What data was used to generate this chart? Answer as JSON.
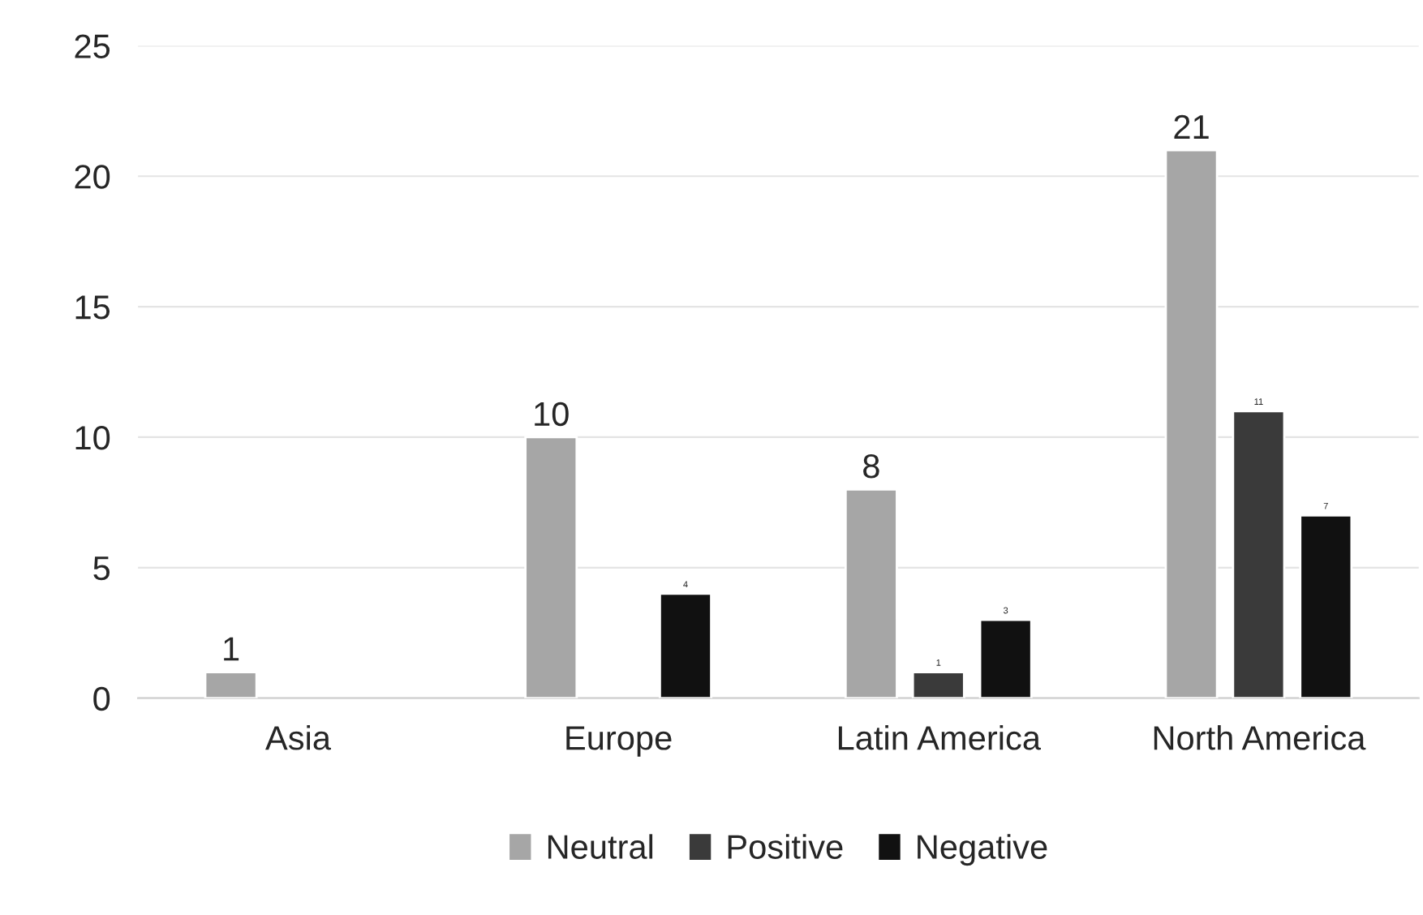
{
  "chart_data": {
    "type": "bar",
    "categories": [
      "Asia",
      "Europe",
      "Latin America",
      "North America"
    ],
    "series": [
      {
        "name": "Neutral",
        "color": "#a6a6a6",
        "values": [
          1,
          10,
          8,
          21
        ]
      },
      {
        "name": "Positive",
        "color": "#3a3a3a",
        "values": [
          null,
          null,
          1,
          11
        ]
      },
      {
        "name": "Negative",
        "color": "#111111",
        "values": [
          null,
          4,
          3,
          7
        ]
      }
    ],
    "ylim": [
      0,
      25
    ],
    "yticks": [
      0,
      5,
      10,
      15,
      20,
      25
    ],
    "grid": "y",
    "legend": "bottom",
    "data_labels": true
  }
}
